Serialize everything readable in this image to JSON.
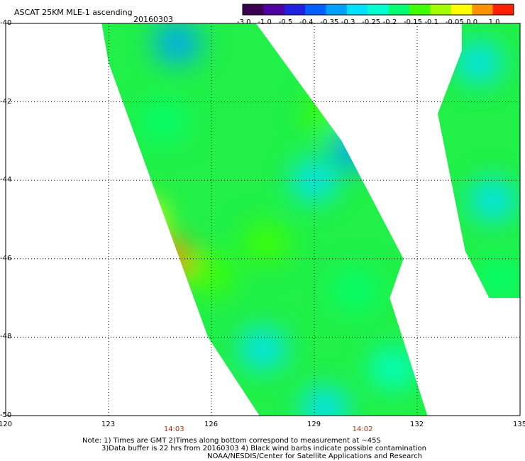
{
  "title": "ASCAT 25KM MLE-1 ascending",
  "date": "20160303",
  "notes": {
    "line1": "Note: 1) Times are GMT 2)Times along bottom correspond to measurement at ~45S",
    "line2": "3)Data buffer is 22 hrs from 20160303 4) Black wind barbs indicate possible contamination",
    "line3": "NOAA/NESDIS/Center for Satellite Applications and Research"
  },
  "colorbar": {
    "labels": [
      "-3.0",
      "-1.0",
      "-0.5",
      "-0.4",
      "-0.35",
      "-0.3",
      "-0.25",
      "-0.2",
      "-0.15",
      "-0.1",
      "-0.05",
      "0.0",
      "1.0"
    ],
    "colors": [
      "#3a0050",
      "#5000a0",
      "#2020e0",
      "#0060ff",
      "#00a0ff",
      "#00e0ff",
      "#00ffd0",
      "#00ff70",
      "#40ff00",
      "#a0ff00",
      "#ffff00",
      "#ff9000",
      "#ff2000"
    ]
  },
  "chart_data": {
    "type": "heatmap",
    "title": "ASCAT 25KM MLE-1 ascending",
    "x_ticks": [
      "120",
      "123",
      "126",
      "129",
      "132",
      "135"
    ],
    "y_ticks": [
      "-40",
      "-42",
      "-44",
      "-46",
      "-48",
      "-50"
    ],
    "xlim": [
      120,
      135
    ],
    "ylim": [
      -50,
      -40
    ],
    "grid": true,
    "times": [
      {
        "label": "14:03",
        "lon": 124.9
      },
      {
        "label": "14:02",
        "lon": 130.4
      }
    ],
    "swaths": [
      {
        "name": "west",
        "edges": [
          [
            122.8,
            -40
          ],
          [
            123.0,
            -41
          ],
          [
            125.9,
            -48
          ],
          [
            127.4,
            -50
          ],
          [
            132.3,
            -50
          ],
          [
            131.2,
            -47
          ],
          [
            131.6,
            -46
          ],
          [
            129.8,
            -43
          ],
          [
            127.3,
            -40
          ]
        ]
      },
      {
        "name": "east",
        "edges": [
          [
            133.3,
            -40
          ],
          [
            135,
            -40
          ],
          [
            135,
            -47.0
          ],
          [
            134.1,
            -47.0
          ],
          [
            133.4,
            -45.8
          ],
          [
            132.6,
            -42.3
          ],
          [
            133.3,
            -40.7
          ]
        ]
      }
    ],
    "blobs": [
      {
        "lon": 124.0,
        "lat": -45.0,
        "value": -0.05
      },
      {
        "lon": 124.8,
        "lat": -46.0,
        "value": 0.0
      },
      {
        "lon": 126.0,
        "lat": -46.4,
        "value": -0.12
      },
      {
        "lon": 125.0,
        "lat": -40.5,
        "value": -0.35
      },
      {
        "lon": 129.4,
        "lat": -42.3,
        "value": -0.12
      },
      {
        "lon": 130.2,
        "lat": -43.2,
        "value": -0.32
      },
      {
        "lon": 129.0,
        "lat": -44.0,
        "value": -0.3
      },
      {
        "lon": 127.5,
        "lat": -48.3,
        "value": -0.28
      },
      {
        "lon": 129.3,
        "lat": -49.8,
        "value": -0.28
      },
      {
        "lon": 131.3,
        "lat": -48.8,
        "value": -0.22
      },
      {
        "lon": 133.8,
        "lat": -41.0,
        "value": -0.3
      },
      {
        "lon": 134.2,
        "lat": -44.5,
        "value": -0.3
      },
      {
        "lon": 134.4,
        "lat": -46.5,
        "value": -0.2
      },
      {
        "lon": 124.6,
        "lat": -42.5,
        "value": -0.18
      },
      {
        "lon": 127.6,
        "lat": -45.6,
        "value": -0.15
      },
      {
        "lon": 130.2,
        "lat": -46.8,
        "value": -0.2
      }
    ]
  }
}
